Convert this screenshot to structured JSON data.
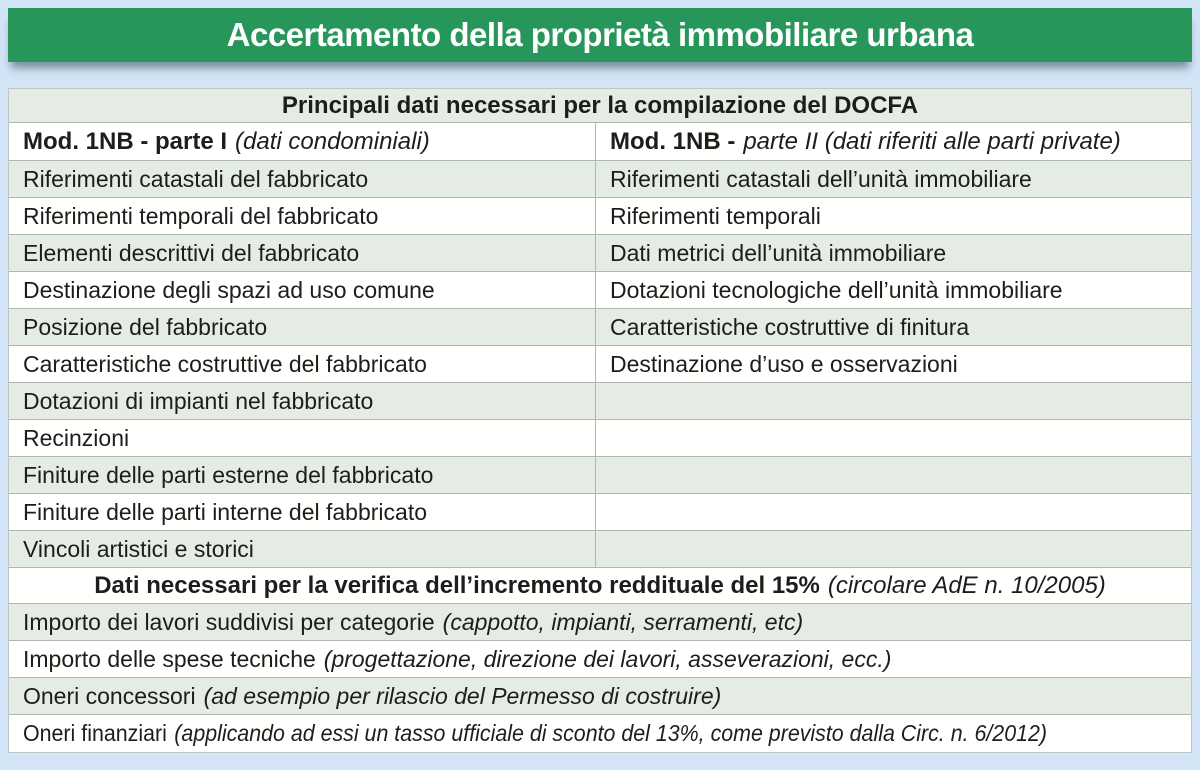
{
  "colors": {
    "page_background": "#d2e4f6",
    "title_bar_green": "#27965a",
    "row_light_green": "#e5ebe5",
    "row_white": "#fffffd",
    "text": "#1d1d1b"
  },
  "title_bar": {
    "text": "Accertamento della proprietà immobiliare urbana"
  },
  "table": {
    "title": "Principali dati necessari per la compilazione del DOCFA",
    "columns": {
      "left": {
        "bold": "Mod. 1NB - parte I",
        "italic": "(dati condominiali)"
      },
      "right": {
        "bold": "Mod. 1NB -",
        "italic": "parte II (dati riferiti alle parti private)"
      }
    },
    "rows": [
      {
        "left": "Riferimenti catastali del fabbricato",
        "right": "Riferimenti catastali dell’unità immobiliare"
      },
      {
        "left": "Riferimenti temporali del fabbricato",
        "right": "Riferimenti temporali"
      },
      {
        "left": "Elementi descrittivi del fabbricato",
        "right": "Dati metrici dell’unità immobiliare"
      },
      {
        "left": "Destinazione degli spazi ad uso comune",
        "right": "Dotazioni tecnologiche dell’unità immobiliare"
      },
      {
        "left": "Posizione del fabbricato",
        "right": "Caratteristiche costruttive di finitura"
      },
      {
        "left": "Caratteristiche costruttive del fabbricato",
        "right": "Destinazione d’uso e osservazioni"
      },
      {
        "left": "Dotazioni di impianti nel fabbricato",
        "right": ""
      },
      {
        "left": "Recinzioni",
        "right": ""
      },
      {
        "left": "Finiture delle parti esterne del fabbricato",
        "right": ""
      },
      {
        "left": "Finiture delle parti interne del fabbricato",
        "right": ""
      },
      {
        "left": "Vincoli artistici e storici",
        "right": ""
      }
    ],
    "section2": {
      "header_bold": "Dati necessari per la verifica dell’incremento reddituale del 15%",
      "header_italic": "(circolare AdE n. 10/2005)",
      "rows": [
        {
          "normal": "Importo dei lavori suddivisi per categorie",
          "italic": "(cappotto, impianti, serramenti, etc)"
        },
        {
          "normal": "Importo delle spese tecniche",
          "italic": "(progettazione, direzione dei lavori, asseverazioni, ecc.)"
        },
        {
          "normal": "Oneri concessori",
          "italic": "(ad esempio per rilascio del Permesso di costruire)"
        },
        {
          "normal": "Oneri finanziari",
          "italic": "(applicando ad essi un tasso ufficiale di sconto del 13%, come previsto dalla Circ. n. 6/2012)"
        }
      ]
    }
  }
}
